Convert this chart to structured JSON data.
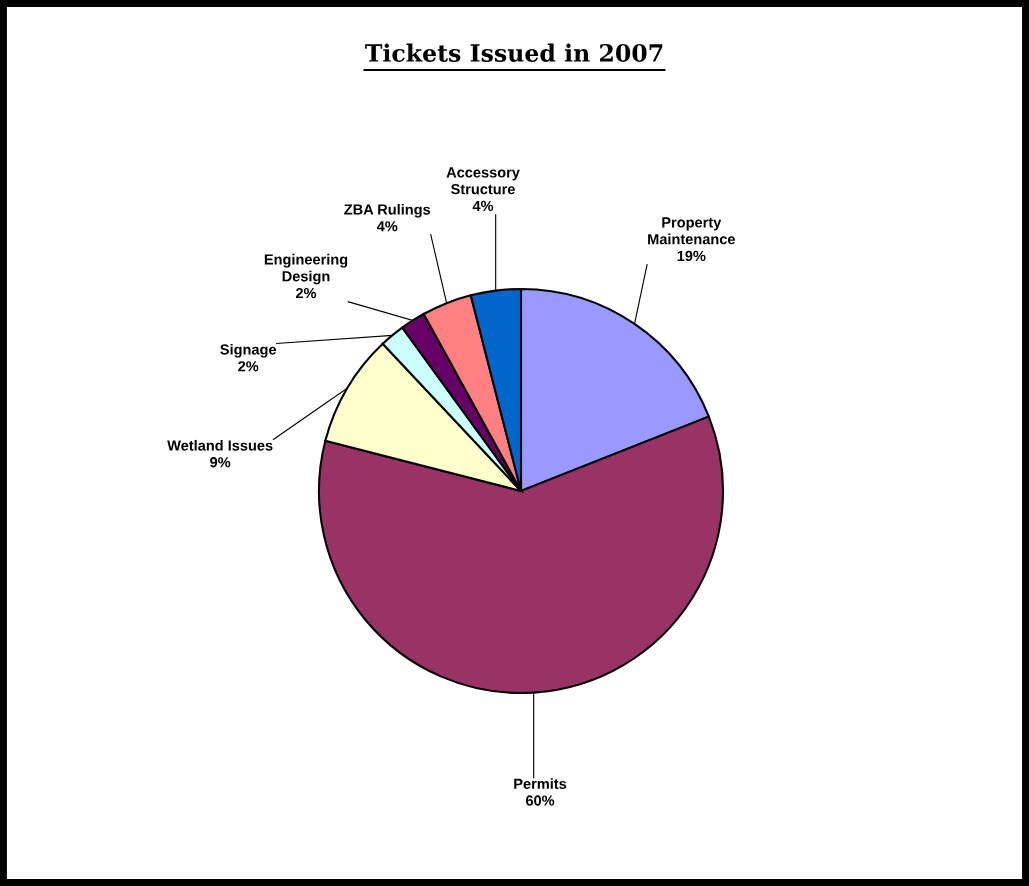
{
  "chart_data": {
    "type": "pie",
    "title": "Tickets Issued in 2007",
    "categories": [
      "Property Maintenance",
      "Permits",
      "Wetland Issues",
      "Signage",
      "Engineering Design",
      "ZBA Rulings",
      "Accessory Structure"
    ],
    "values": [
      19,
      60,
      9,
      2,
      2,
      4,
      4
    ],
    "value_labels": [
      "19%",
      "60%",
      "9%",
      "2%",
      "2%",
      "4%",
      "4%"
    ],
    "colors": [
      "#9999ff",
      "#993366",
      "#ffffcc",
      "#ccffff",
      "#660066",
      "#ff8080",
      "#0066cc"
    ]
  }
}
